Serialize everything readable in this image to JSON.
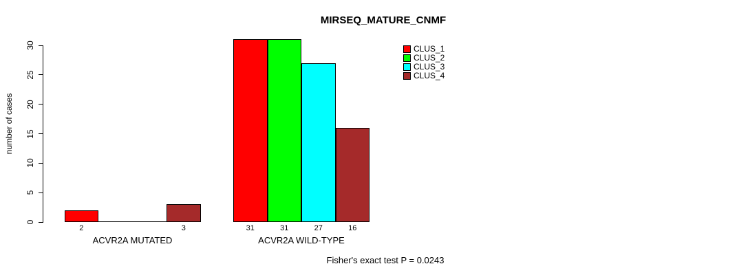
{
  "chart_data": {
    "type": "bar",
    "title": "MIRSEQ_MATURE_CNMF",
    "ylabel": "number of cases",
    "xlabel": "",
    "ylim": [
      0,
      30
    ],
    "yticks": [
      0,
      5,
      10,
      15,
      20,
      25,
      30
    ],
    "grid": false,
    "legend_position": "top-right",
    "categories": [
      "ACVR2A MUTATED",
      "ACVR2A WILD-TYPE"
    ],
    "series": [
      {
        "name": "CLUS_1",
        "color": "#FF0000",
        "values": [
          2,
          31
        ]
      },
      {
        "name": "CLUS_2",
        "color": "#00FF00",
        "values": [
          0,
          31
        ]
      },
      {
        "name": "CLUS_3",
        "color": "#00FFFF",
        "values": [
          0,
          27
        ]
      },
      {
        "name": "CLUS_4",
        "color": "#A52A2A",
        "values": [
          3,
          16
        ]
      }
    ],
    "bar_value_labels": [
      [
        "2",
        "",
        "",
        "3"
      ],
      [
        "31",
        "31",
        "27",
        "16"
      ]
    ],
    "annotation": "Fisher's exact test P = 0.0243",
    "colors": {
      "axis": "#000000",
      "bar_outline": "#000000",
      "background": "#FFFFFF"
    }
  }
}
